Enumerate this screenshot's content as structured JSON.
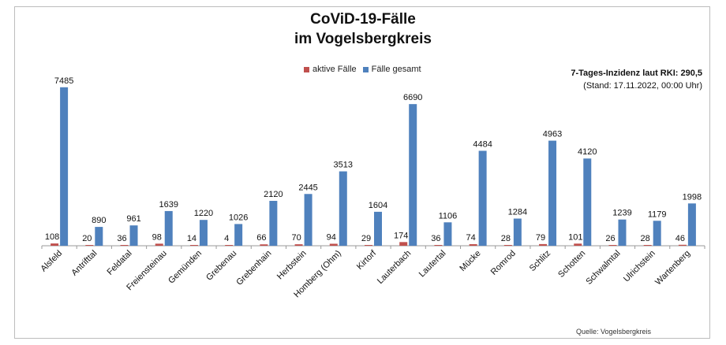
{
  "chart_data": {
    "type": "bar",
    "title": "CoViD-19-Fälle",
    "subtitle": "im Vogelsbergkreis",
    "categories": [
      "Alsfeld",
      "Antrifttal",
      "Feldatal",
      "Freiensteinau",
      "Gemünden",
      "Grebenau",
      "Grebenhain",
      "Herbstein",
      "Homberg (Ohm)",
      "Kirtorf",
      "Lauterbach",
      "Lautertal",
      "Mücke",
      "Romrod",
      "Schlitz",
      "Schotten",
      "Schwalmtal",
      "Ulrichstein",
      "Wartenberg"
    ],
    "series": [
      {
        "name": "aktive Fälle",
        "color": "#c0504d",
        "values": [
          108,
          20,
          36,
          98,
          14,
          4,
          66,
          70,
          94,
          29,
          174,
          36,
          74,
          28,
          79,
          101,
          26,
          28,
          46
        ]
      },
      {
        "name": "Fälle gesamt",
        "color": "#4f81bd",
        "values": [
          7485,
          890,
          961,
          1639,
          1220,
          1026,
          2120,
          2445,
          3513,
          1604,
          6690,
          1106,
          4484,
          1284,
          4963,
          4120,
          1239,
          1179,
          1998
        ]
      }
    ],
    "ylim": [
      0,
      7700
    ],
    "grid": false,
    "legend_position": "top-center",
    "note_line1": "7-Tages-Inzidenz laut RKI: 290,5",
    "note_line2": "(Stand: 17.11.2022, 00:00 Uhr)",
    "source": "Quelle: Vogelsbergkreis"
  }
}
